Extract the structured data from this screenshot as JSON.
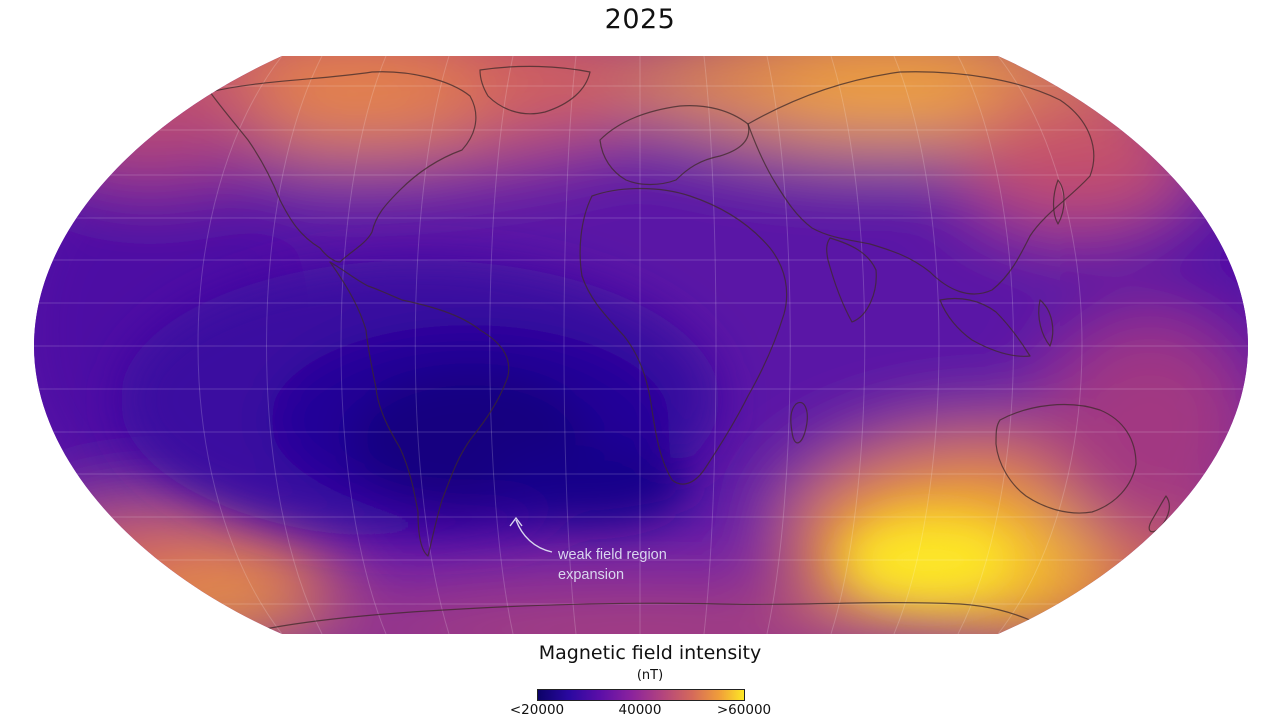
{
  "title": "2025",
  "annotation": {
    "line1": "weak field region",
    "line2": "expansion"
  },
  "legend": {
    "title": "Magnetic field intensity",
    "unit": "(nT)",
    "ticks": [
      "<20000",
      "40000",
      ">60000"
    ],
    "colors": [
      "#0c0268",
      "#2a08a0",
      "#5b0ea8",
      "#8a229e",
      "#b2437f",
      "#d56a5a",
      "#f09e3a",
      "#fde725"
    ]
  },
  "field_features": [
    {
      "name": "South Atlantic weak-field minimum",
      "level": "low"
    },
    {
      "name": "Southern Indian Ocean / Antarctic high",
      "level": "high"
    },
    {
      "name": "Siberian high",
      "level": "high"
    },
    {
      "name": "Canadian high",
      "level": "high"
    }
  ]
}
